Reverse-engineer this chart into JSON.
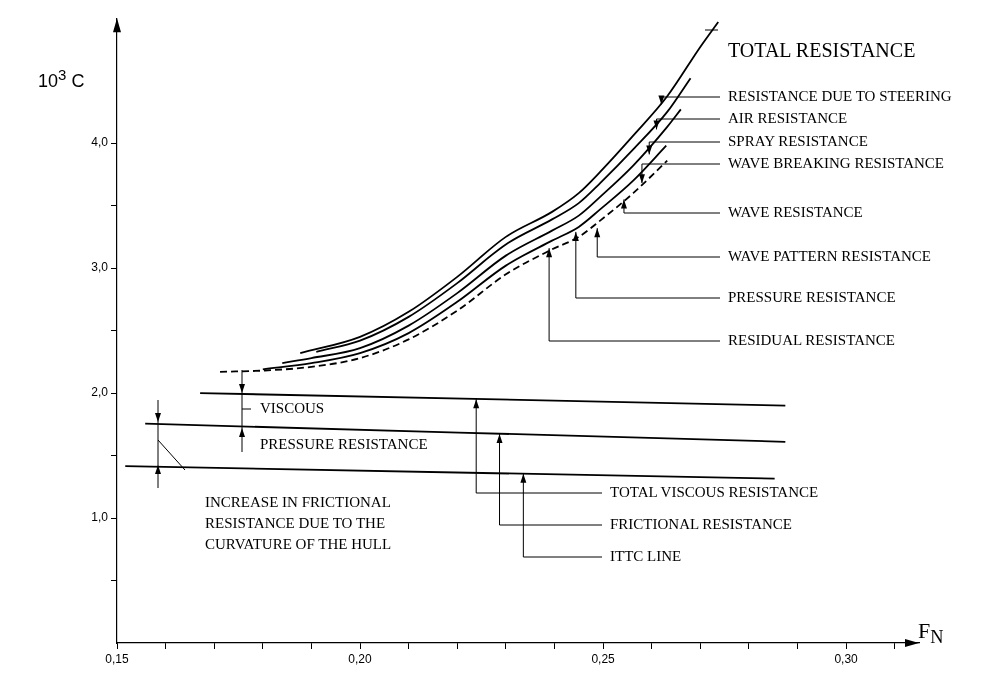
{
  "chart_data": {
    "type": "line",
    "xlabel": "F$_{N}$",
    "ylabel": "10$^{3}$ C",
    "xlim": [
      0.15,
      0.315
    ],
    "ylim": [
      0,
      5
    ],
    "xticks": [
      {
        "value": 0.15,
        "label": "0,15"
      },
      {
        "value": 0.16,
        "label": null
      },
      {
        "value": 0.17,
        "label": null
      },
      {
        "value": 0.18,
        "label": null
      },
      {
        "value": 0.19,
        "label": null
      },
      {
        "value": 0.2,
        "label": "0,20"
      },
      {
        "value": 0.21,
        "label": null
      },
      {
        "value": 0.22,
        "label": null
      },
      {
        "value": 0.23,
        "label": null
      },
      {
        "value": 0.24,
        "label": null
      },
      {
        "value": 0.25,
        "label": "0,25"
      },
      {
        "value": 0.26,
        "label": null
      },
      {
        "value": 0.27,
        "label": null
      },
      {
        "value": 0.28,
        "label": null
      },
      {
        "value": 0.29,
        "label": null
      },
      {
        "value": 0.3,
        "label": "0,30"
      },
      {
        "value": 0.31,
        "label": null
      }
    ],
    "yticks": [
      {
        "value": 0.5,
        "label": null
      },
      {
        "value": 1,
        "label": "1,0"
      },
      {
        "value": 1.5,
        "label": null
      },
      {
        "value": 2,
        "label": "2,0"
      },
      {
        "value": 2.5,
        "label": null
      },
      {
        "value": 3,
        "label": "3,0"
      },
      {
        "value": 3.5,
        "label": null
      },
      {
        "value": 4,
        "label": "4,0"
      }
    ],
    "marker": "none",
    "series": [
      {
        "color": "#000000",
        "x": [
          0.1877,
          0.2,
          0.21,
          0.22,
          0.23,
          0.2395,
          0.245,
          0.2494,
          0.2562,
          0.2632,
          0.27,
          0.2737
        ],
        "values": [
          2.32,
          2.45,
          2.65,
          2.93,
          3.25,
          3.45,
          3.6,
          3.77,
          4.06,
          4.375,
          4.77,
          4.97
        ]
      },
      {
        "color": "#000000",
        "x": [
          0.191,
          0.2,
          0.21,
          0.22,
          0.23,
          0.2395,
          0.245,
          0.2494,
          0.2562,
          0.2632,
          0.268
        ],
        "values": [
          2.33,
          2.42,
          2.61,
          2.88,
          3.19,
          3.39,
          3.52,
          3.68,
          3.95,
          4.25,
          4.52
        ]
      },
      {
        "color": "#000000",
        "x": [
          0.184,
          0.19,
          0.2,
          0.21,
          0.22,
          0.23,
          0.2395,
          0.245,
          0.2494,
          0.2562,
          0.2632,
          0.266
        ],
        "values": [
          2.24,
          2.28,
          2.36,
          2.54,
          2.8,
          3.1,
          3.3,
          3.42,
          3.57,
          3.82,
          4.13,
          4.27
        ]
      },
      {
        "color": "#000000",
        "x": [
          0.18,
          0.19,
          0.2,
          0.21,
          0.22,
          0.23,
          0.2395,
          0.245,
          0.2494,
          0.2562,
          0.263
        ],
        "values": [
          2.19,
          2.24,
          2.32,
          2.48,
          2.73,
          3.02,
          3.22,
          3.33,
          3.47,
          3.7,
          3.98
        ]
      },
      {
        "color": "#000000",
        "line_style": "dashed",
        "x": [
          0.1712,
          0.18,
          0.19,
          0.2,
          0.21,
          0.22,
          0.23,
          0.2395,
          0.245,
          0.2494,
          0.2562,
          0.2632
        ],
        "values": [
          2.17,
          2.18,
          2.21,
          2.28,
          2.43,
          2.66,
          2.95,
          3.15,
          3.25,
          3.38,
          3.6,
          3.86
        ]
      },
      {
        "color": "#000000",
        "x": [
          0.1671,
          0.2875
        ],
        "values": [
          2.0,
          1.9
        ]
      },
      {
        "color": "#000000",
        "x": [
          0.1558,
          0.2875
        ],
        "values": [
          1.755,
          1.61
        ]
      },
      {
        "color": "#000000",
        "x": [
          0.1517,
          0.2853
        ],
        "values": [
          1.415,
          1.316
        ]
      }
    ],
    "annotations": [
      "TOTAL RESISTANCE",
      {
        "text": "RESISTANCE DUE TO STEERING",
        "x": 0.262,
        "y": 4.31
      },
      {
        "text": "AIR RESISTANCE",
        "x": 0.261,
        "y": 4.11
      },
      {
        "text": "SPRAY RESISTANCE",
        "x": 0.2595,
        "y": 3.91
      },
      {
        "text": "WAVE BREAKING RESISTANCE",
        "x": 0.258,
        "y": 3.68
      },
      {
        "text": "WAVE RESISTANCE",
        "x": 0.2543,
        "y": 3.55
      },
      {
        "text": "WAVE PATTERN RESISTANCE",
        "x": 0.2488,
        "y": 3.32
      },
      {
        "text": "PRESSURE RESISTANCE",
        "x": 0.2444,
        "y": 3.29
      },
      {
        "text": "RESIDUAL RESISTANCE",
        "x": 0.2389,
        "y": 3.16
      },
      {
        "text": "VISCOUS",
        "x": 0.1757,
        "y": 1.993
      },
      {
        "text": "PRESSURE RESISTANCE",
        "x": 0.1757,
        "y": 1.733
      },
      "INCREASE IN FRICTIONAL\nRESISTANCE DUE TO THE\nCURVATURE OF THE HULL",
      {
        "text": "TOTAL VISCOUS RESISTANCE",
        "x": 0.2239,
        "y": 1.951
      },
      {
        "text": "FRICTIONAL RESISTANCE",
        "x": 0.2287,
        "y": 1.673
      },
      {
        "text": "ITTC LINE",
        "x": 0.2336,
        "y": 1.354
      }
    ]
  }
}
